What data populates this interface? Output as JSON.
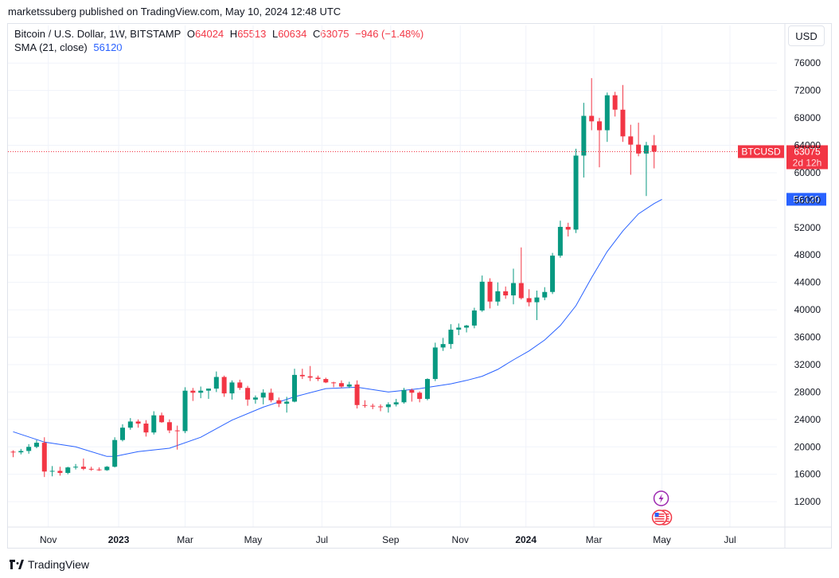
{
  "header": {
    "text": "marketssuberg published on TradingView.com, May 10, 2024 12:48 UTC"
  },
  "legend": {
    "symbol": "Bitcoin / U.S. Dollar, 1W, BITSTAMP",
    "o_label": "O",
    "o_value": "64024",
    "h_label": "H",
    "h_value": "65513",
    "l_label": "L",
    "l_value": "60634",
    "c_label": "C",
    "c_value": "63075",
    "change": "−946 (−1.48%)",
    "sma_label": "SMA (21, close)",
    "sma_value": "56120"
  },
  "currency_button": "USD",
  "footer": {
    "brand": "TradingView"
  },
  "colors": {
    "up": "#089981",
    "down": "#f23645",
    "sma": "#2962ff",
    "price_line": "#f23645"
  },
  "icons": [
    "lightning-event-icon",
    "us-flag-event-icon"
  ],
  "chart_data": {
    "type": "candlestick",
    "x_labels": [
      {
        "label": "Nov",
        "bold": false,
        "week": 4.5
      },
      {
        "label": "2023",
        "bold": true,
        "week": 13.5
      },
      {
        "label": "Mar",
        "bold": false,
        "week": 22
      },
      {
        "label": "May",
        "bold": false,
        "week": 30.7
      },
      {
        "label": "Jul",
        "bold": false,
        "week": 39.5
      },
      {
        "label": "Sep",
        "bold": false,
        "week": 48.3
      },
      {
        "label": "Nov",
        "bold": false,
        "week": 57.2
      },
      {
        "label": "2024",
        "bold": true,
        "week": 65.6
      },
      {
        "label": "Mar",
        "bold": false,
        "week": 74.3
      },
      {
        "label": "May",
        "bold": false,
        "week": 83
      },
      {
        "label": "Jul",
        "bold": false,
        "week": 91.7
      }
    ],
    "y_ticks": [
      12000,
      16000,
      20000,
      24000,
      28000,
      32000,
      36000,
      40000,
      44000,
      48000,
      52000,
      56000,
      60000,
      64000,
      68000,
      72000,
      76000
    ],
    "ylim": [
      8300,
      78000
    ],
    "candles": [
      [
        19300,
        19500,
        18500,
        19200
      ],
      [
        19200,
        19700,
        18900,
        19400
      ],
      [
        19400,
        20400,
        19000,
        20000
      ],
      [
        20000,
        21000,
        19800,
        20600
      ],
      [
        20600,
        21400,
        15600,
        16400
      ],
      [
        16400,
        17200,
        15700,
        16500
      ],
      [
        16500,
        17100,
        15800,
        16200
      ],
      [
        16200,
        17100,
        16000,
        17000
      ],
      [
        17000,
        17500,
        16700,
        17100
      ],
      [
        17100,
        18300,
        16600,
        16800
      ],
      [
        16800,
        17100,
        16500,
        16700
      ],
      [
        16700,
        17000,
        16500,
        16600
      ],
      [
        16600,
        17200,
        16500,
        17100
      ],
      [
        17100,
        21400,
        17000,
        21000
      ],
      [
        21000,
        23300,
        20800,
        22800
      ],
      [
        22800,
        24200,
        22500,
        23700
      ],
      [
        23700,
        24000,
        22800,
        23400
      ],
      [
        23400,
        23900,
        21500,
        22100
      ],
      [
        22100,
        25200,
        21800,
        24600
      ],
      [
        24600,
        25000,
        23500,
        23600
      ],
      [
        23600,
        24000,
        22000,
        22400
      ],
      [
        22400,
        23100,
        19600,
        22300
      ],
      [
        22300,
        28700,
        22000,
        28200
      ],
      [
        28200,
        28600,
        26700,
        27900
      ],
      [
        27900,
        28800,
        27100,
        28200
      ],
      [
        28200,
        28500,
        27000,
        28500
      ],
      [
        28500,
        31000,
        28000,
        30200
      ],
      [
        30200,
        30400,
        27300,
        27800
      ],
      [
        27800,
        29700,
        26900,
        29400
      ],
      [
        29400,
        29800,
        28300,
        28600
      ],
      [
        28600,
        28900,
        26000,
        26900
      ],
      [
        26900,
        27500,
        26300,
        27200
      ],
      [
        27200,
        28400,
        26200,
        27900
      ],
      [
        27900,
        28500,
        26500,
        26800
      ],
      [
        26800,
        27200,
        25800,
        26300
      ],
      [
        26300,
        27300,
        25000,
        26600
      ],
      [
        26600,
        31400,
        26500,
        30500
      ],
      [
        30500,
        31400,
        29900,
        30300
      ],
      [
        30300,
        31800,
        29600,
        30100
      ],
      [
        30100,
        30400,
        29600,
        29900
      ],
      [
        29900,
        30100,
        29300,
        29400
      ],
      [
        29400,
        29500,
        28700,
        29300
      ],
      [
        29300,
        29700,
        28600,
        28800
      ],
      [
        28800,
        29500,
        28600,
        29100
      ],
      [
        29100,
        29700,
        25600,
        26100
      ],
      [
        26100,
        26800,
        25700,
        26000
      ],
      [
        26000,
        26300,
        25500,
        25900
      ],
      [
        25900,
        26200,
        25200,
        25800
      ],
      [
        25800,
        26500,
        25000,
        26200
      ],
      [
        26200,
        27000,
        25900,
        26500
      ],
      [
        26500,
        28600,
        26300,
        28300
      ],
      [
        28300,
        28500,
        26600,
        27900
      ],
      [
        27900,
        28100,
        26500,
        27000
      ],
      [
        27000,
        30000,
        26800,
        29900
      ],
      [
        29900,
        35200,
        29600,
        34500
      ],
      [
        34500,
        35900,
        34000,
        35000
      ],
      [
        35000,
        37900,
        34300,
        37100
      ],
      [
        37100,
        38000,
        36300,
        37400
      ],
      [
        37400,
        37800,
        36700,
        37700
      ],
      [
        37700,
        40300,
        37300,
        39900
      ],
      [
        39900,
        45000,
        39700,
        44100
      ],
      [
        44100,
        44600,
        40200,
        41200
      ],
      [
        41200,
        44000,
        40600,
        42700
      ],
      [
        42700,
        43400,
        41600,
        42100
      ],
      [
        42100,
        46000,
        40800,
        43900
      ],
      [
        43900,
        49100,
        41500,
        41700
      ],
      [
        41700,
        43000,
        40500,
        41100
      ],
      [
        41100,
        42800,
        38500,
        41800
      ],
      [
        41800,
        43300,
        41400,
        42600
      ],
      [
        42600,
        48300,
        42300,
        47900
      ],
      [
        47900,
        53000,
        47600,
        52100
      ],
      [
        52100,
        52700,
        50700,
        51700
      ],
      [
        51700,
        63500,
        51200,
        62500
      ],
      [
        62500,
        70200,
        59300,
        68300
      ],
      [
        68300,
        73800,
        66200,
        67500
      ],
      [
        67500,
        68000,
        60800,
        66200
      ],
      [
        66200,
        71700,
        64500,
        71300
      ],
      [
        71300,
        71800,
        68200,
        69200
      ],
      [
        69200,
        72800,
        64500,
        65300
      ],
      [
        65300,
        67000,
        59700,
        64100
      ],
      [
        64100,
        67300,
        62400,
        62800
      ],
      [
        62800,
        64500,
        56600,
        64000
      ],
      [
        64000,
        65500,
        60634,
        63075
      ]
    ],
    "sma": [
      [
        0,
        22200
      ],
      [
        4,
        20700
      ],
      [
        8,
        20000
      ],
      [
        12,
        18600
      ],
      [
        13,
        18600
      ],
      [
        16,
        19300
      ],
      [
        20,
        19800
      ],
      [
        24,
        21400
      ],
      [
        28,
        23900
      ],
      [
        32,
        25800
      ],
      [
        36,
        27300
      ],
      [
        40,
        28500
      ],
      [
        44,
        28700
      ],
      [
        48,
        28000
      ],
      [
        52,
        28500
      ],
      [
        56,
        29200
      ],
      [
        58,
        29700
      ],
      [
        60,
        30300
      ],
      [
        62,
        31300
      ],
      [
        64,
        32700
      ],
      [
        66,
        34000
      ],
      [
        68,
        35600
      ],
      [
        70,
        37700
      ],
      [
        72,
        40600
      ],
      [
        74,
        44700
      ],
      [
        76,
        48500
      ],
      [
        78,
        51500
      ],
      [
        80,
        54000
      ],
      [
        82,
        55500
      ],
      [
        83,
        56120
      ]
    ],
    "last_price": 63075,
    "last_price_tag": "BTCUSD",
    "last_price_label": "63075",
    "countdown": "2d 12h",
    "sma_last_label": "56120"
  }
}
